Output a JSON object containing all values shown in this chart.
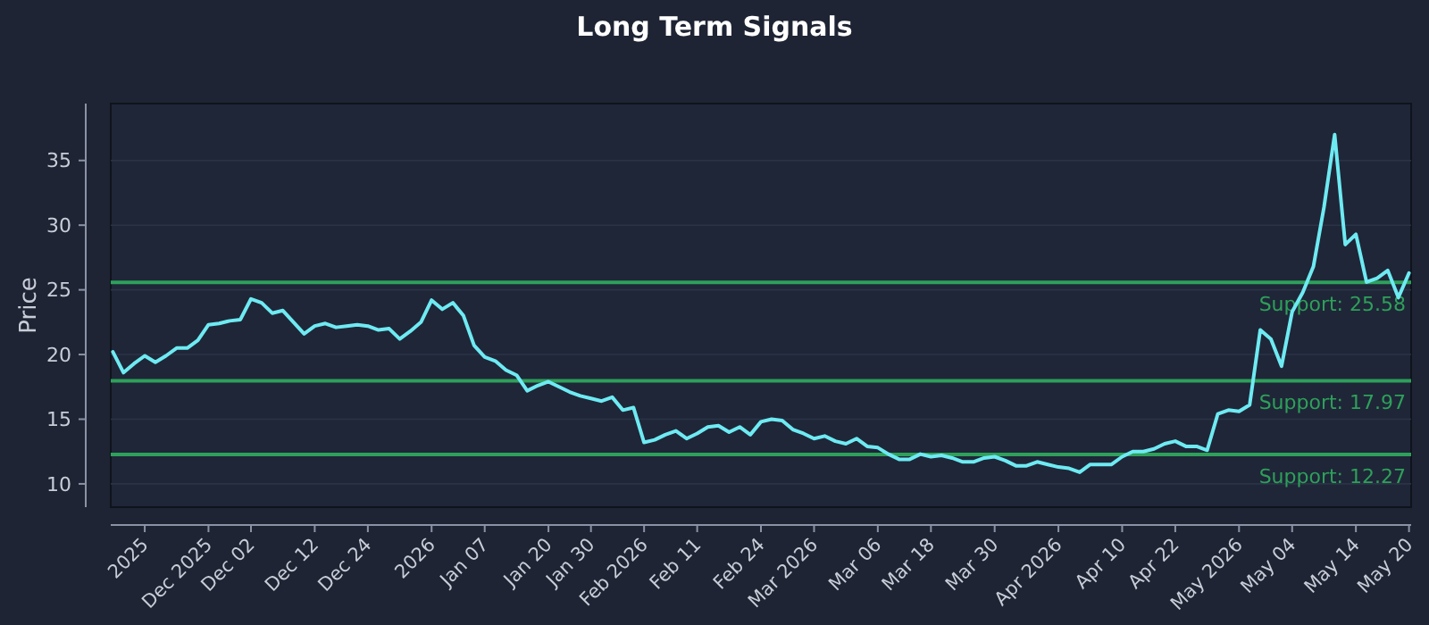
{
  "chart_data": {
    "type": "line",
    "title": "Long Term Signals",
    "ylabel": "Price",
    "ylim": [
      8.2,
      39.4
    ],
    "yticks": [
      10,
      15,
      20,
      25,
      30,
      35
    ],
    "categories": [
      null,
      null,
      null,
      "2025",
      null,
      null,
      null,
      null,
      null,
      "Dec 2025",
      null,
      null,
      null,
      "Dec 02",
      null,
      null,
      null,
      null,
      null,
      "Dec 12",
      null,
      null,
      null,
      null,
      "Dec 24",
      null,
      null,
      null,
      null,
      null,
      "2026",
      null,
      null,
      null,
      null,
      "Jan 07",
      null,
      null,
      null,
      null,
      null,
      "Jan 20",
      null,
      null,
      null,
      "Jan 30",
      null,
      null,
      null,
      null,
      "Feb 2026",
      null,
      null,
      null,
      null,
      "Feb 11",
      null,
      null,
      null,
      null,
      null,
      "Feb 24",
      null,
      null,
      null,
      null,
      "Mar 2026",
      null,
      null,
      null,
      null,
      null,
      "Mar 06",
      null,
      null,
      null,
      null,
      "Mar 18",
      null,
      null,
      null,
      null,
      null,
      "Mar 30",
      null,
      null,
      null,
      null,
      null,
      "Apr 2026",
      null,
      null,
      null,
      null,
      null,
      "Apr 10",
      null,
      null,
      null,
      null,
      "Apr 22",
      null,
      null,
      null,
      null,
      null,
      "May 2026",
      null,
      null,
      null,
      null,
      "May 04",
      null,
      null,
      null,
      null,
      null,
      "May 14",
      null,
      null,
      null,
      null,
      "May 20"
    ],
    "grid": "y",
    "ref_lines": [
      {
        "axis": "y",
        "value": 25.58,
        "label": "Support: 25.58",
        "color": "#2ea05a"
      },
      {
        "axis": "y",
        "value": 17.97,
        "label": "Support: 17.97",
        "color": "#2ea05a"
      },
      {
        "axis": "y",
        "value": 12.27,
        "label": "Support: 12.27",
        "color": "#2ea05a"
      }
    ],
    "series": [
      {
        "color": "#6eeaf2",
        "values": [
          20.2,
          18.6,
          19.3,
          19.9,
          19.4,
          19.9,
          20.5,
          20.5,
          21.1,
          22.3,
          22.4,
          22.6,
          22.7,
          24.3,
          24.0,
          23.2,
          23.4,
          22.5,
          21.6,
          22.2,
          22.4,
          22.1,
          22.2,
          22.3,
          22.2,
          21.9,
          22.0,
          21.2,
          21.8,
          22.5,
          24.2,
          23.5,
          24.0,
          23.0,
          20.7,
          19.8,
          19.5,
          18.8,
          18.4,
          17.2,
          17.6,
          17.9,
          17.5,
          17.1,
          16.8,
          16.6,
          16.4,
          16.7,
          15.7,
          15.9,
          13.2,
          13.4,
          13.8,
          14.1,
          13.5,
          13.9,
          14.4,
          14.5,
          14.0,
          14.4,
          13.8,
          14.8,
          15.0,
          14.9,
          14.2,
          13.9,
          13.5,
          13.7,
          13.3,
          13.1,
          13.5,
          12.9,
          12.8,
          12.3,
          11.9,
          11.9,
          12.3,
          12.1,
          12.2,
          12.0,
          11.7,
          11.7,
          12.0,
          12.1,
          11.8,
          11.4,
          11.4,
          11.7,
          11.5,
          11.3,
          11.2,
          10.9,
          11.5,
          11.5,
          11.5,
          12.1,
          12.5,
          12.5,
          12.7,
          13.1,
          13.3,
          12.9,
          12.9,
          12.6,
          15.4,
          15.7,
          15.6,
          16.1,
          21.9,
          21.2,
          19.1,
          23.3,
          24.8,
          26.8,
          31.4,
          37.0,
          28.5,
          29.3,
          25.6,
          25.9,
          26.5,
          24.4,
          26.3
        ]
      }
    ]
  }
}
